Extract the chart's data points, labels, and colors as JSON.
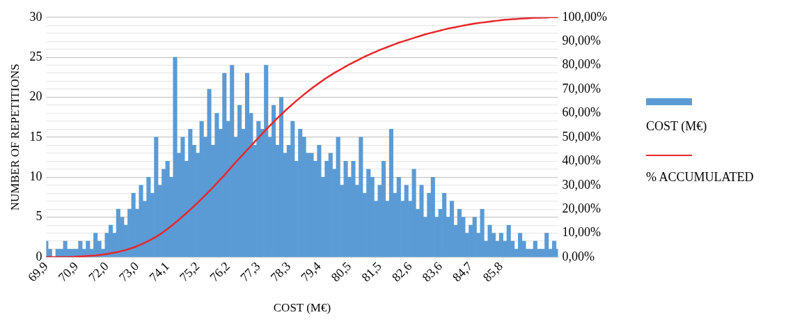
{
  "chart_data": {
    "type": "bar",
    "xlabel": "COST (M€)",
    "ylabel": "NUMBER OF REPETITIONS",
    "categories": [
      "69,9",
      null,
      null,
      null,
      null,
      null,
      null,
      null,
      "70,9",
      null,
      null,
      null,
      null,
      null,
      null,
      null,
      "72,0",
      null,
      null,
      null,
      null,
      null,
      null,
      null,
      "73,0",
      null,
      null,
      null,
      null,
      null,
      null,
      null,
      "74,1",
      null,
      null,
      null,
      null,
      null,
      null,
      null,
      "75,2",
      null,
      null,
      null,
      null,
      null,
      null,
      null,
      "76,2",
      null,
      null,
      null,
      null,
      null,
      null,
      null,
      "77,3",
      null,
      null,
      null,
      null,
      null,
      null,
      null,
      "78,3",
      null,
      null,
      null,
      null,
      null,
      null,
      null,
      "79,4",
      null,
      null,
      null,
      null,
      null,
      null,
      null,
      "80,5",
      null,
      null,
      null,
      null,
      null,
      null,
      null,
      "81,5",
      null,
      null,
      null,
      null,
      null,
      null,
      null,
      "82,6",
      null,
      null,
      null,
      null,
      null,
      null,
      null,
      "83,6",
      null,
      null,
      null,
      null,
      null,
      null,
      null,
      "84,7",
      null,
      null,
      null,
      null,
      null,
      null,
      null,
      "85,8",
      null,
      null,
      null,
      null,
      null,
      null,
      null,
      null,
      null,
      null,
      null,
      null,
      null,
      null,
      null
    ],
    "series": [
      {
        "name": "COST (M€)",
        "color": "#5b9bd5",
        "values": [
          2,
          1,
          0,
          1,
          1,
          2,
          1,
          1,
          1,
          2,
          1,
          2,
          1,
          3,
          2,
          1,
          3,
          4,
          3,
          6,
          5,
          4,
          6,
          8,
          6,
          9,
          7,
          10,
          8,
          15,
          9,
          11,
          12,
          10,
          25,
          13,
          15,
          12,
          16,
          14,
          13,
          17,
          15,
          21,
          14,
          18,
          16,
          23,
          17,
          24,
          15,
          19,
          16,
          23,
          18,
          14,
          17,
          16,
          24,
          15,
          19,
          14,
          20,
          13,
          14,
          17,
          12,
          16,
          15,
          13,
          13,
          12,
          14,
          10,
          12,
          13,
          11,
          15,
          9,
          12,
          10,
          12,
          9,
          15,
          8,
          11,
          10,
          7,
          9,
          12,
          7,
          16,
          8,
          10,
          7,
          9,
          7,
          11,
          6,
          9,
          5,
          8,
          10,
          5,
          6,
          8,
          5,
          7,
          4,
          6,
          5,
          3,
          4,
          5,
          3,
          6,
          2,
          4,
          3,
          2,
          3,
          2,
          4,
          2,
          1,
          3,
          2,
          1,
          1,
          2,
          1,
          1,
          3,
          1,
          2,
          1
        ]
      },
      {
        "name": "% ACCUMULATED",
        "type": "line",
        "axis": "y2",
        "color": "#e8262b",
        "values": [
          0,
          0,
          0,
          0,
          0,
          0,
          0.1,
          0.1,
          0.2,
          0.3,
          0.4,
          0.5,
          0.6,
          0.7,
          0.9,
          1.1,
          1.3,
          1.6,
          1.9,
          2.2,
          2.6,
          3,
          3.5,
          4,
          4.6,
          5.3,
          6,
          6.8,
          7.6,
          8.5,
          9.5,
          10.6,
          11.8,
          13,
          14.3,
          15.6,
          17,
          18.4,
          19.8,
          21.3,
          22.8,
          24.3,
          25.9,
          27.5,
          29.1,
          30.8,
          32.5,
          34.2,
          36,
          37.8,
          39.6,
          41.3,
          43,
          44.7,
          46.4,
          48.1,
          49.8,
          51.5,
          53.2,
          54.8,
          56.4,
          58,
          59.5,
          61,
          62.4,
          63.8,
          65.2,
          66.5,
          67.8,
          69.1,
          70.3,
          71.5,
          72.6,
          73.7,
          74.8,
          75.8,
          76.8,
          77.7,
          78.6,
          79.5,
          80.4,
          81.2,
          82,
          82.8,
          83.6,
          84.3,
          85,
          85.7,
          86.4,
          87,
          87.6,
          88.2,
          88.8,
          89.4,
          89.9,
          90.4,
          90.9,
          91.4,
          91.9,
          92.4,
          92.9,
          93.3,
          93.7,
          94.1,
          94.5,
          94.9,
          95.3,
          95.6,
          95.9,
          96.2,
          96.5,
          96.8,
          97.1,
          97.4,
          97.6,
          97.8,
          98,
          98.2,
          98.4,
          98.6,
          98.8,
          99,
          99.1,
          99.2,
          99.3,
          99.4,
          99.5,
          99.6,
          99.7,
          99.8,
          99.8,
          99.9,
          99.9,
          100,
          100,
          100
        ]
      }
    ],
    "ylim": [
      0,
      30
    ],
    "yticks": [
      0,
      {
        "value": 1,
        "label": null
      },
      {
        "value": 2,
        "label": null
      },
      {
        "value": 3,
        "label": null
      },
      {
        "value": 4,
        "label": null
      },
      5,
      {
        "value": 6,
        "label": null
      },
      {
        "value": 7,
        "label": null
      },
      {
        "value": 8,
        "label": null
      },
      {
        "value": 9,
        "label": null
      },
      10,
      {
        "value": 11,
        "label": null
      },
      {
        "value": 12,
        "label": null
      },
      {
        "value": 13,
        "label": null
      },
      {
        "value": 14,
        "label": null
      },
      15,
      {
        "value": 16,
        "label": null
      },
      {
        "value": 17,
        "label": null
      },
      {
        "value": 18,
        "label": null
      },
      {
        "value": 19,
        "label": null
      },
      20,
      {
        "value": 21,
        "label": null
      },
      {
        "value": 22,
        "label": null
      },
      {
        "value": 23,
        "label": null
      },
      {
        "value": 24,
        "label": null
      },
      25,
      {
        "value": 26,
        "label": null
      },
      {
        "value": 27,
        "label": null
      },
      {
        "value": 28,
        "label": null
      },
      {
        "value": 29,
        "label": null
      },
      30
    ],
    "y2lim": [
      0,
      100
    ],
    "y2ticks": [
      {
        "value": 0,
        "label": "0,00%"
      },
      {
        "value": 10,
        "label": "10,00%"
      },
      {
        "value": 20,
        "label": "20,00%"
      },
      {
        "value": 30,
        "label": "30,00%"
      },
      {
        "value": 40,
        "label": "40,00%"
      },
      {
        "value": 50,
        "label": "50,00%"
      },
      {
        "value": 60,
        "label": "60,00%"
      },
      {
        "value": 70,
        "label": "70,00%"
      },
      {
        "value": 80,
        "label": "80,00%"
      },
      {
        "value": 90,
        "label": "90,00%"
      },
      {
        "value": 100,
        "label": "100,00%"
      }
    ],
    "grid": "y",
    "legend": "right",
    "marker": "none",
    "line_style": "solid"
  }
}
